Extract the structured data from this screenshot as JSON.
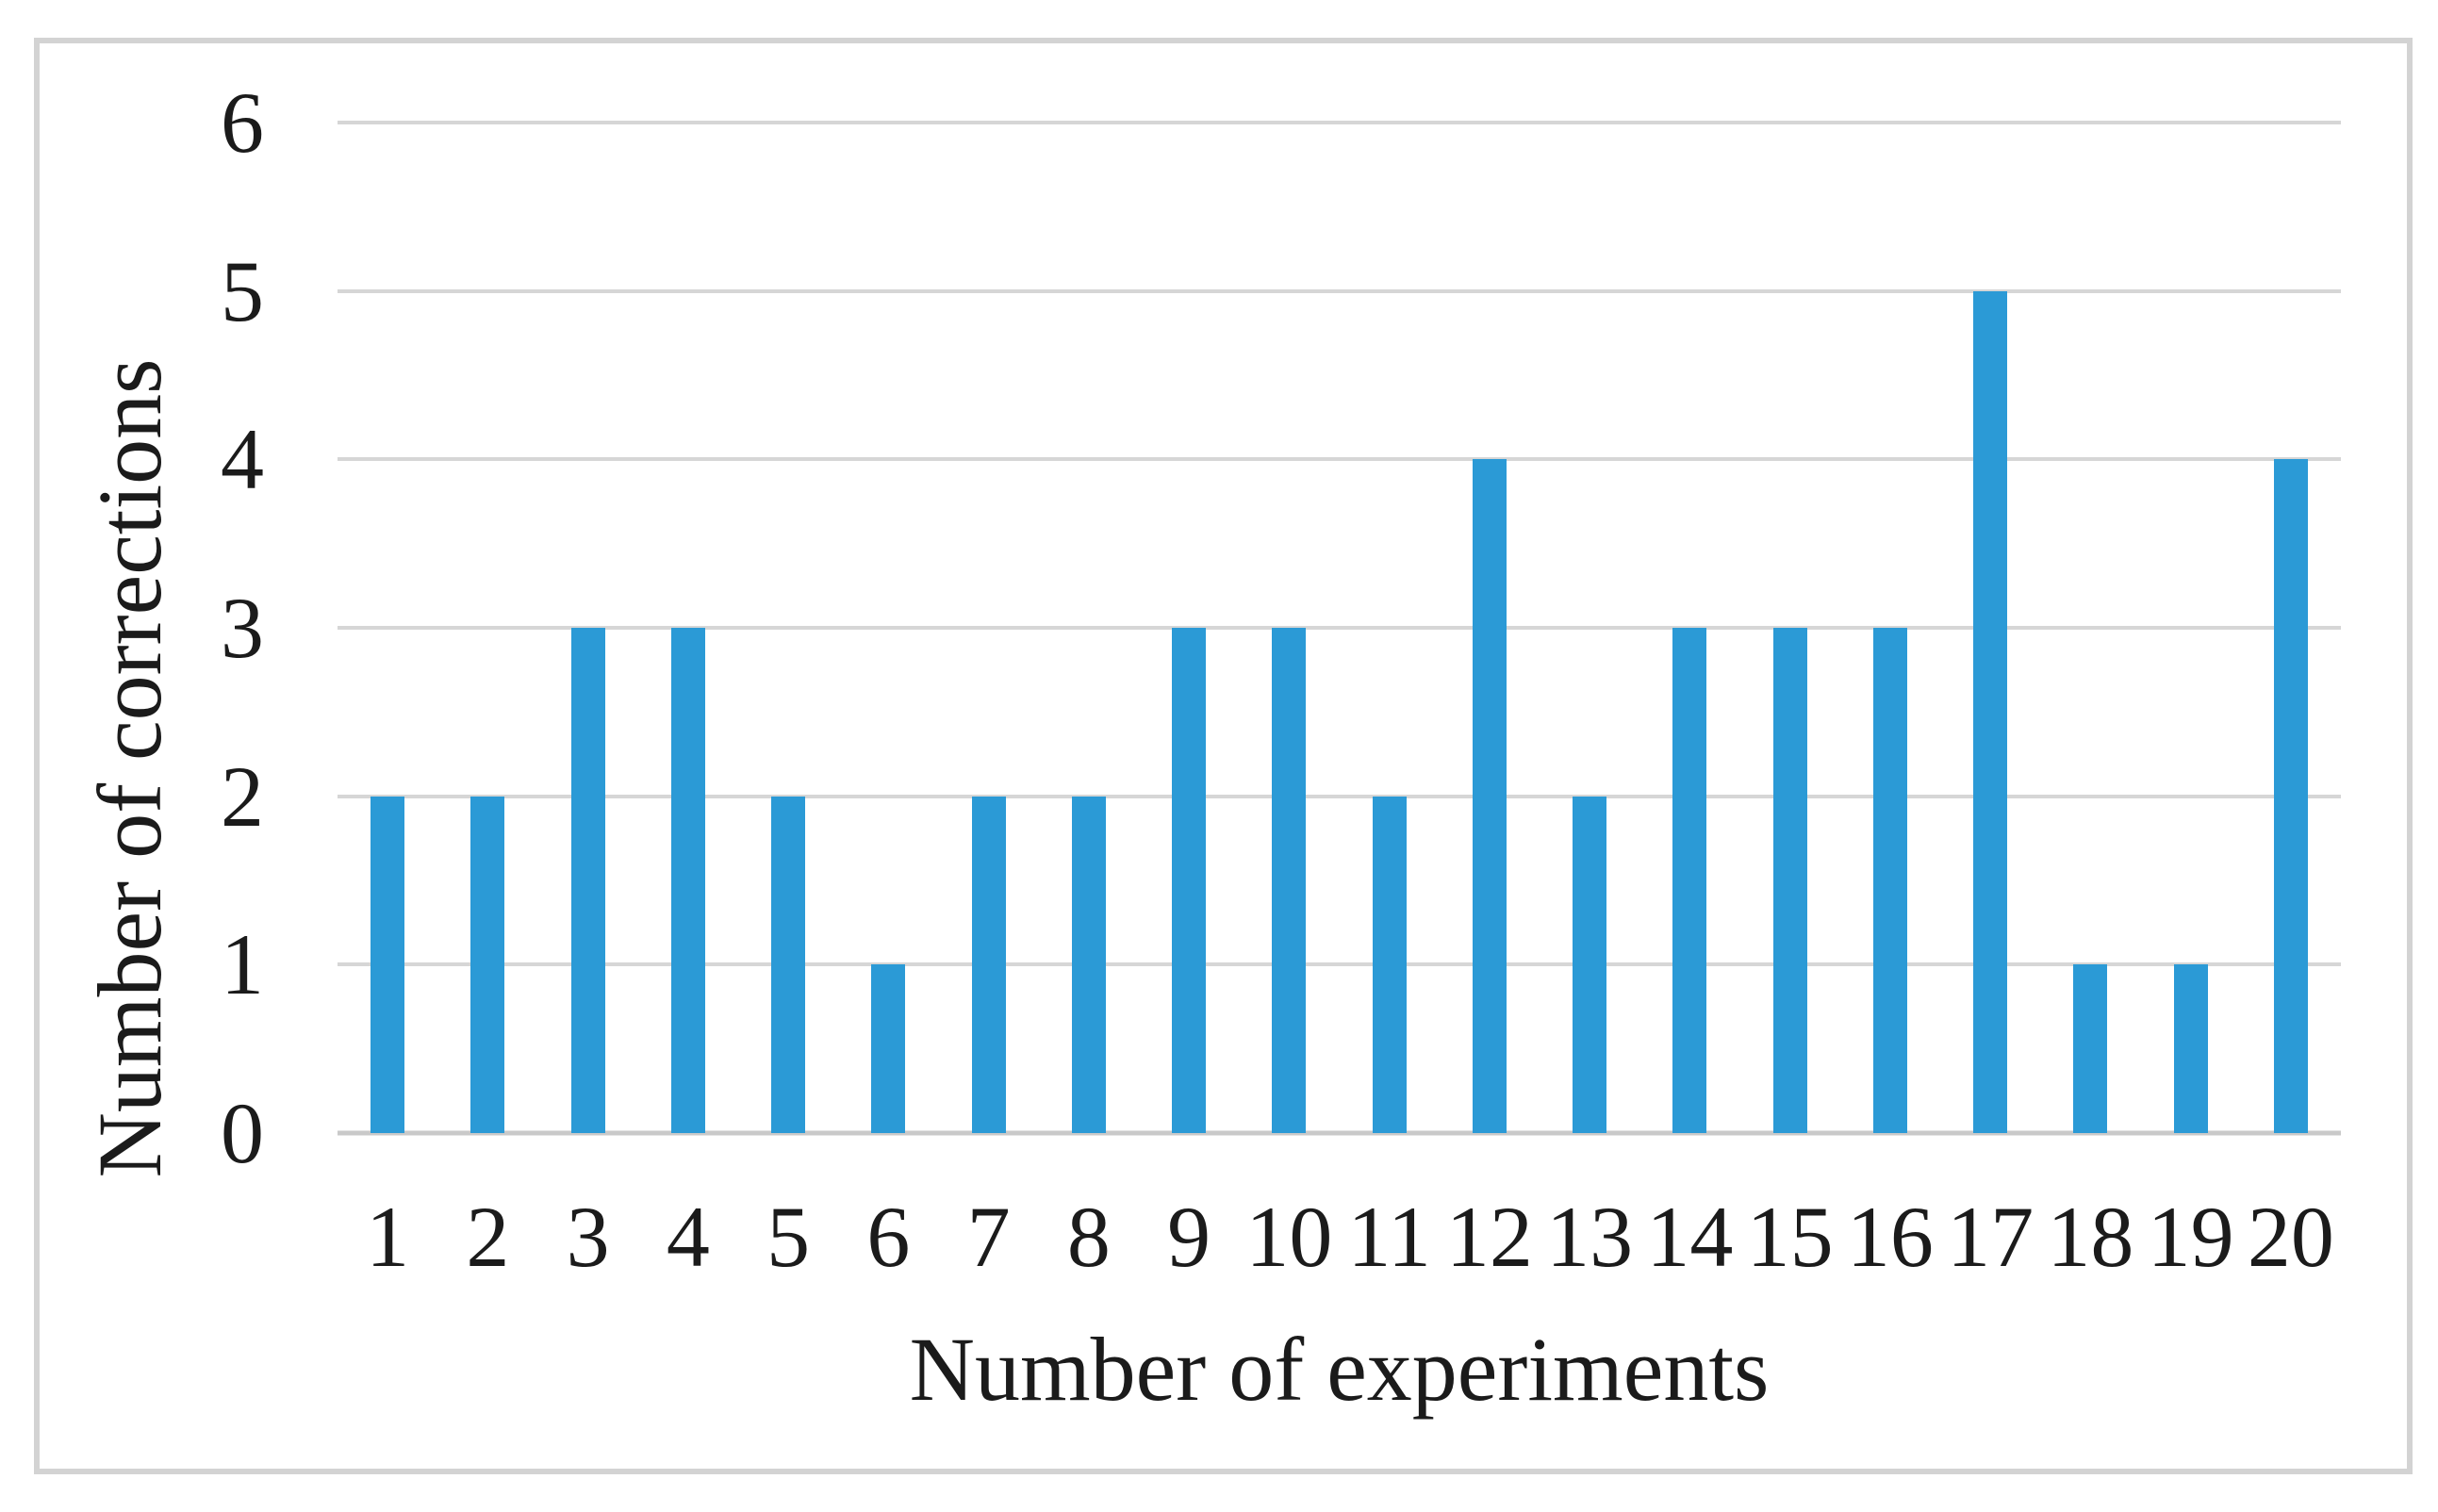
{
  "chart_data": {
    "type": "bar",
    "title": "",
    "xlabel": "Number of experiments",
    "ylabel": "Number of corrections",
    "categories": [
      "1",
      "2",
      "3",
      "4",
      "5",
      "6",
      "7",
      "8",
      "9",
      "10",
      "11",
      "12",
      "13",
      "14",
      "15",
      "16",
      "17",
      "18",
      "19",
      "20"
    ],
    "values": [
      2,
      2,
      3,
      3,
      2,
      1,
      2,
      2,
      3,
      3,
      2,
      4,
      2,
      3,
      3,
      3,
      5,
      1,
      1,
      4
    ],
    "ylim": [
      0,
      6
    ],
    "yticks": [
      0,
      1,
      2,
      3,
      4,
      5,
      6
    ],
    "grid": true,
    "legend": false,
    "colors": {
      "bar": "#2B9AD6",
      "gridline": "#D6D6D6",
      "axis_line": "#C9C9C9",
      "frame_border": "#D3D3D3",
      "text": "#1B1B1B",
      "background": "#FFFFFF"
    }
  }
}
